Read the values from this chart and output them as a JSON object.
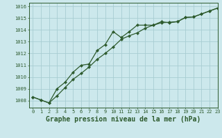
{
  "xlabel": "Graphe pression niveau de la mer (hPa)",
  "bg_color": "#cce8ec",
  "grid_color": "#a8cdd2",
  "line_color": "#2d5a2d",
  "xlim": [
    -0.5,
    23
  ],
  "ylim": [
    1007.4,
    1016.3
  ],
  "yticks": [
    1008,
    1009,
    1010,
    1011,
    1012,
    1013,
    1014,
    1015,
    1016
  ],
  "xticks": [
    0,
    1,
    2,
    3,
    4,
    5,
    6,
    7,
    8,
    9,
    10,
    11,
    12,
    13,
    14,
    15,
    16,
    17,
    18,
    19,
    20,
    21,
    22,
    23
  ],
  "line1_x": [
    0,
    1,
    2,
    3,
    4,
    5,
    6,
    7,
    8,
    9,
    10,
    11,
    12,
    13,
    14,
    15,
    16,
    17,
    18,
    19,
    20,
    21,
    22,
    23
  ],
  "line1_y": [
    1008.3,
    1008.05,
    1007.8,
    1008.4,
    1009.1,
    1009.8,
    1010.3,
    1010.85,
    1011.5,
    1012.0,
    1012.55,
    1013.2,
    1013.5,
    1013.75,
    1014.15,
    1014.4,
    1014.6,
    1014.65,
    1014.7,
    1015.05,
    1015.1,
    1015.35,
    1015.6,
    1015.85
  ],
  "line2_x": [
    0,
    1,
    2,
    3,
    4,
    5,
    6,
    7,
    8,
    9,
    10,
    11,
    12,
    13,
    14,
    15,
    16,
    17,
    18,
    19,
    20,
    21,
    22,
    23
  ],
  "line2_y": [
    1008.3,
    1008.05,
    1007.8,
    1009.0,
    1009.55,
    1010.4,
    1011.0,
    1011.1,
    1012.25,
    1012.75,
    1013.85,
    1013.35,
    1013.85,
    1014.4,
    1014.4,
    1014.4,
    1014.7,
    1014.6,
    1014.7,
    1015.05,
    1015.1,
    1015.35,
    1015.6,
    1015.85
  ],
  "markersize": 2.2,
  "linewidth": 0.9,
  "xlabel_fontsize": 7,
  "tick_fontsize": 5,
  "spine_color": "#2d5a2d"
}
